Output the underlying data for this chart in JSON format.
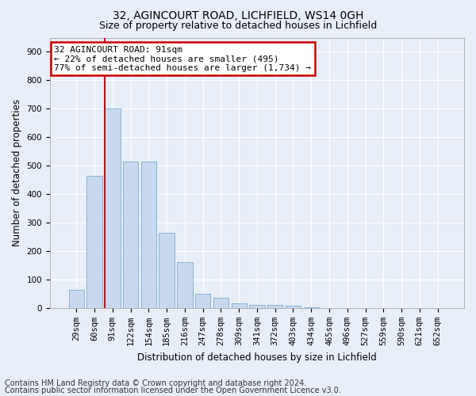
{
  "title1": "32, AGINCOURT ROAD, LICHFIELD, WS14 0GH",
  "title2": "Size of property relative to detached houses in Lichfield",
  "xlabel": "Distribution of detached houses by size in Lichfield",
  "ylabel": "Number of detached properties",
  "categories": [
    "29sqm",
    "60sqm",
    "91sqm",
    "122sqm",
    "154sqm",
    "185sqm",
    "216sqm",
    "247sqm",
    "278sqm",
    "309sqm",
    "341sqm",
    "372sqm",
    "403sqm",
    "434sqm",
    "465sqm",
    "496sqm",
    "527sqm",
    "559sqm",
    "590sqm",
    "621sqm",
    "652sqm"
  ],
  "values": [
    65,
    465,
    700,
    515,
    515,
    265,
    160,
    50,
    35,
    17,
    12,
    10,
    7,
    3,
    1,
    0,
    0,
    0,
    0,
    0,
    0
  ],
  "bar_color": "#c8d9ef",
  "bar_edge_color": "#7aaad0",
  "vline_x": 1.575,
  "vline_color": "#cc0000",
  "ylim": [
    0,
    950
  ],
  "yticks": [
    0,
    100,
    200,
    300,
    400,
    500,
    600,
    700,
    800,
    900
  ],
  "annotation_text": "32 AGINCOURT ROAD: 91sqm\n← 22% of detached houses are smaller (495)\n77% of semi-detached houses are larger (1,734) →",
  "annotation_box_color": "#ffffff",
  "annotation_box_edge": "#cc0000",
  "footer1": "Contains HM Land Registry data © Crown copyright and database right 2024.",
  "footer2": "Contains public sector information licensed under the Open Government Licence v3.0.",
  "bg_color": "#e8eef7",
  "plot_bg": "#e8eef7",
  "grid_color": "#ffffff",
  "title_fontsize": 10,
  "subtitle_fontsize": 9,
  "axis_label_fontsize": 8.5,
  "tick_fontsize": 7.5,
  "footer_fontsize": 7
}
